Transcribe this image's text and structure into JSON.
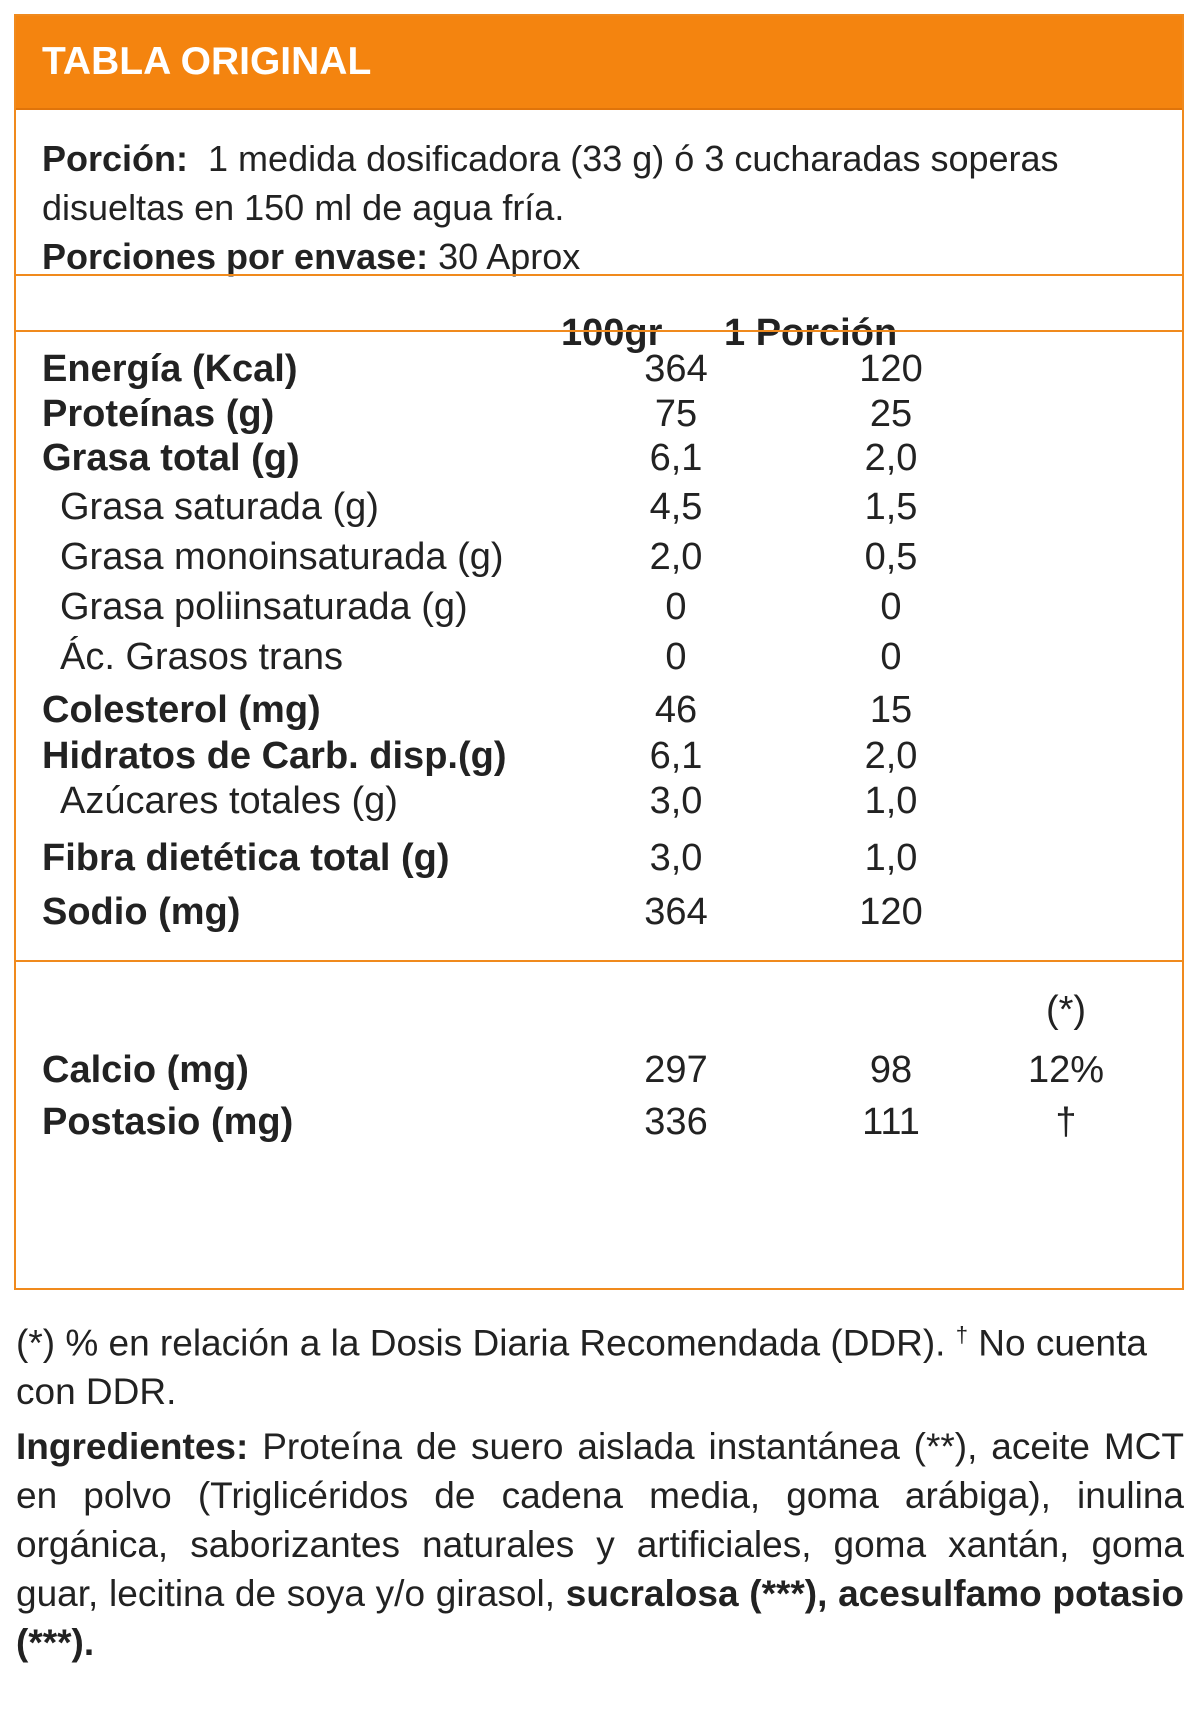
{
  "header": {
    "title": "TABLA ORIGINAL"
  },
  "colors": {
    "accent": "#f4840f",
    "border": "#f08a1d",
    "text": "#222222"
  },
  "portion": {
    "label": "Porción:",
    "value": "1 medida dosificadora (33 g) ó 3 cucharadas soperas disueltas en 150 ml de agua fría.",
    "servings_label": "Porciones por envase:",
    "servings_value": "30 Aprox"
  },
  "columns": {
    "per100": "100gr",
    "per_portion": "1 Porción"
  },
  "nutrients": [
    {
      "label": "Energía (Kcal)",
      "per100": "364",
      "per_portion": "120"
    },
    {
      "label": "Proteínas (g)",
      "per100": "75",
      "per_portion": "25"
    },
    {
      "label": "Grasa total (g)",
      "per100": "6,1",
      "per_portion": "2,0"
    },
    {
      "label": "Grasa saturada (g)",
      "per100": "4,5",
      "per_portion": "1,5"
    },
    {
      "label": "Grasa monoinsaturada (g)",
      "per100": "2,0",
      "per_portion": "0,5"
    },
    {
      "label": "Grasa poliinsaturada (g)",
      "per100": "0",
      "per_portion": "0"
    },
    {
      "label": "Ác. Grasos trans",
      "per100": "0",
      "per_portion": "0"
    },
    {
      "label": "Colesterol (mg)",
      "per100": "46",
      "per_portion": "15"
    },
    {
      "label": "Hidratos de Carb. disp.(g)",
      "per100": "6,1",
      "per_portion": "2,0"
    },
    {
      "label": "Azúcares totales (g)",
      "per100": "3,0",
      "per_portion": "1,0"
    },
    {
      "label": "Fibra dietética total (g)",
      "per100": "3,0",
      "per_portion": "1,0"
    },
    {
      "label": "Sodio (mg)",
      "per100": "364",
      "per_portion": "120"
    }
  ],
  "minerals": {
    "ddr_header": "(*)",
    "rows": [
      {
        "label": "Calcio (mg)",
        "per100": "297",
        "per_portion": "98",
        "ddr": "12%"
      },
      {
        "label": "Postasio (mg)",
        "per100": "336",
        "per_portion": "111",
        "ddr": "†"
      }
    ]
  },
  "footnote": {
    "text": "(*) % en relación a la Dosis Diaria Recomendada (DDR).",
    "dagger": "†",
    "text2": " No cuenta con DDR."
  },
  "ingredients": {
    "label": "Ingredientes:",
    "text": " Proteína de suero aislada instantánea (**), aceite MCT en polvo (Triglicéridos de cadena media, goma arábiga), inulina orgánica, saborizantes naturales y artificiales, goma xantán, goma guar, lecitina de soya y/o girasol, ",
    "bold_tail": "sucralosa (***), acesulfamo potasio (***)."
  }
}
